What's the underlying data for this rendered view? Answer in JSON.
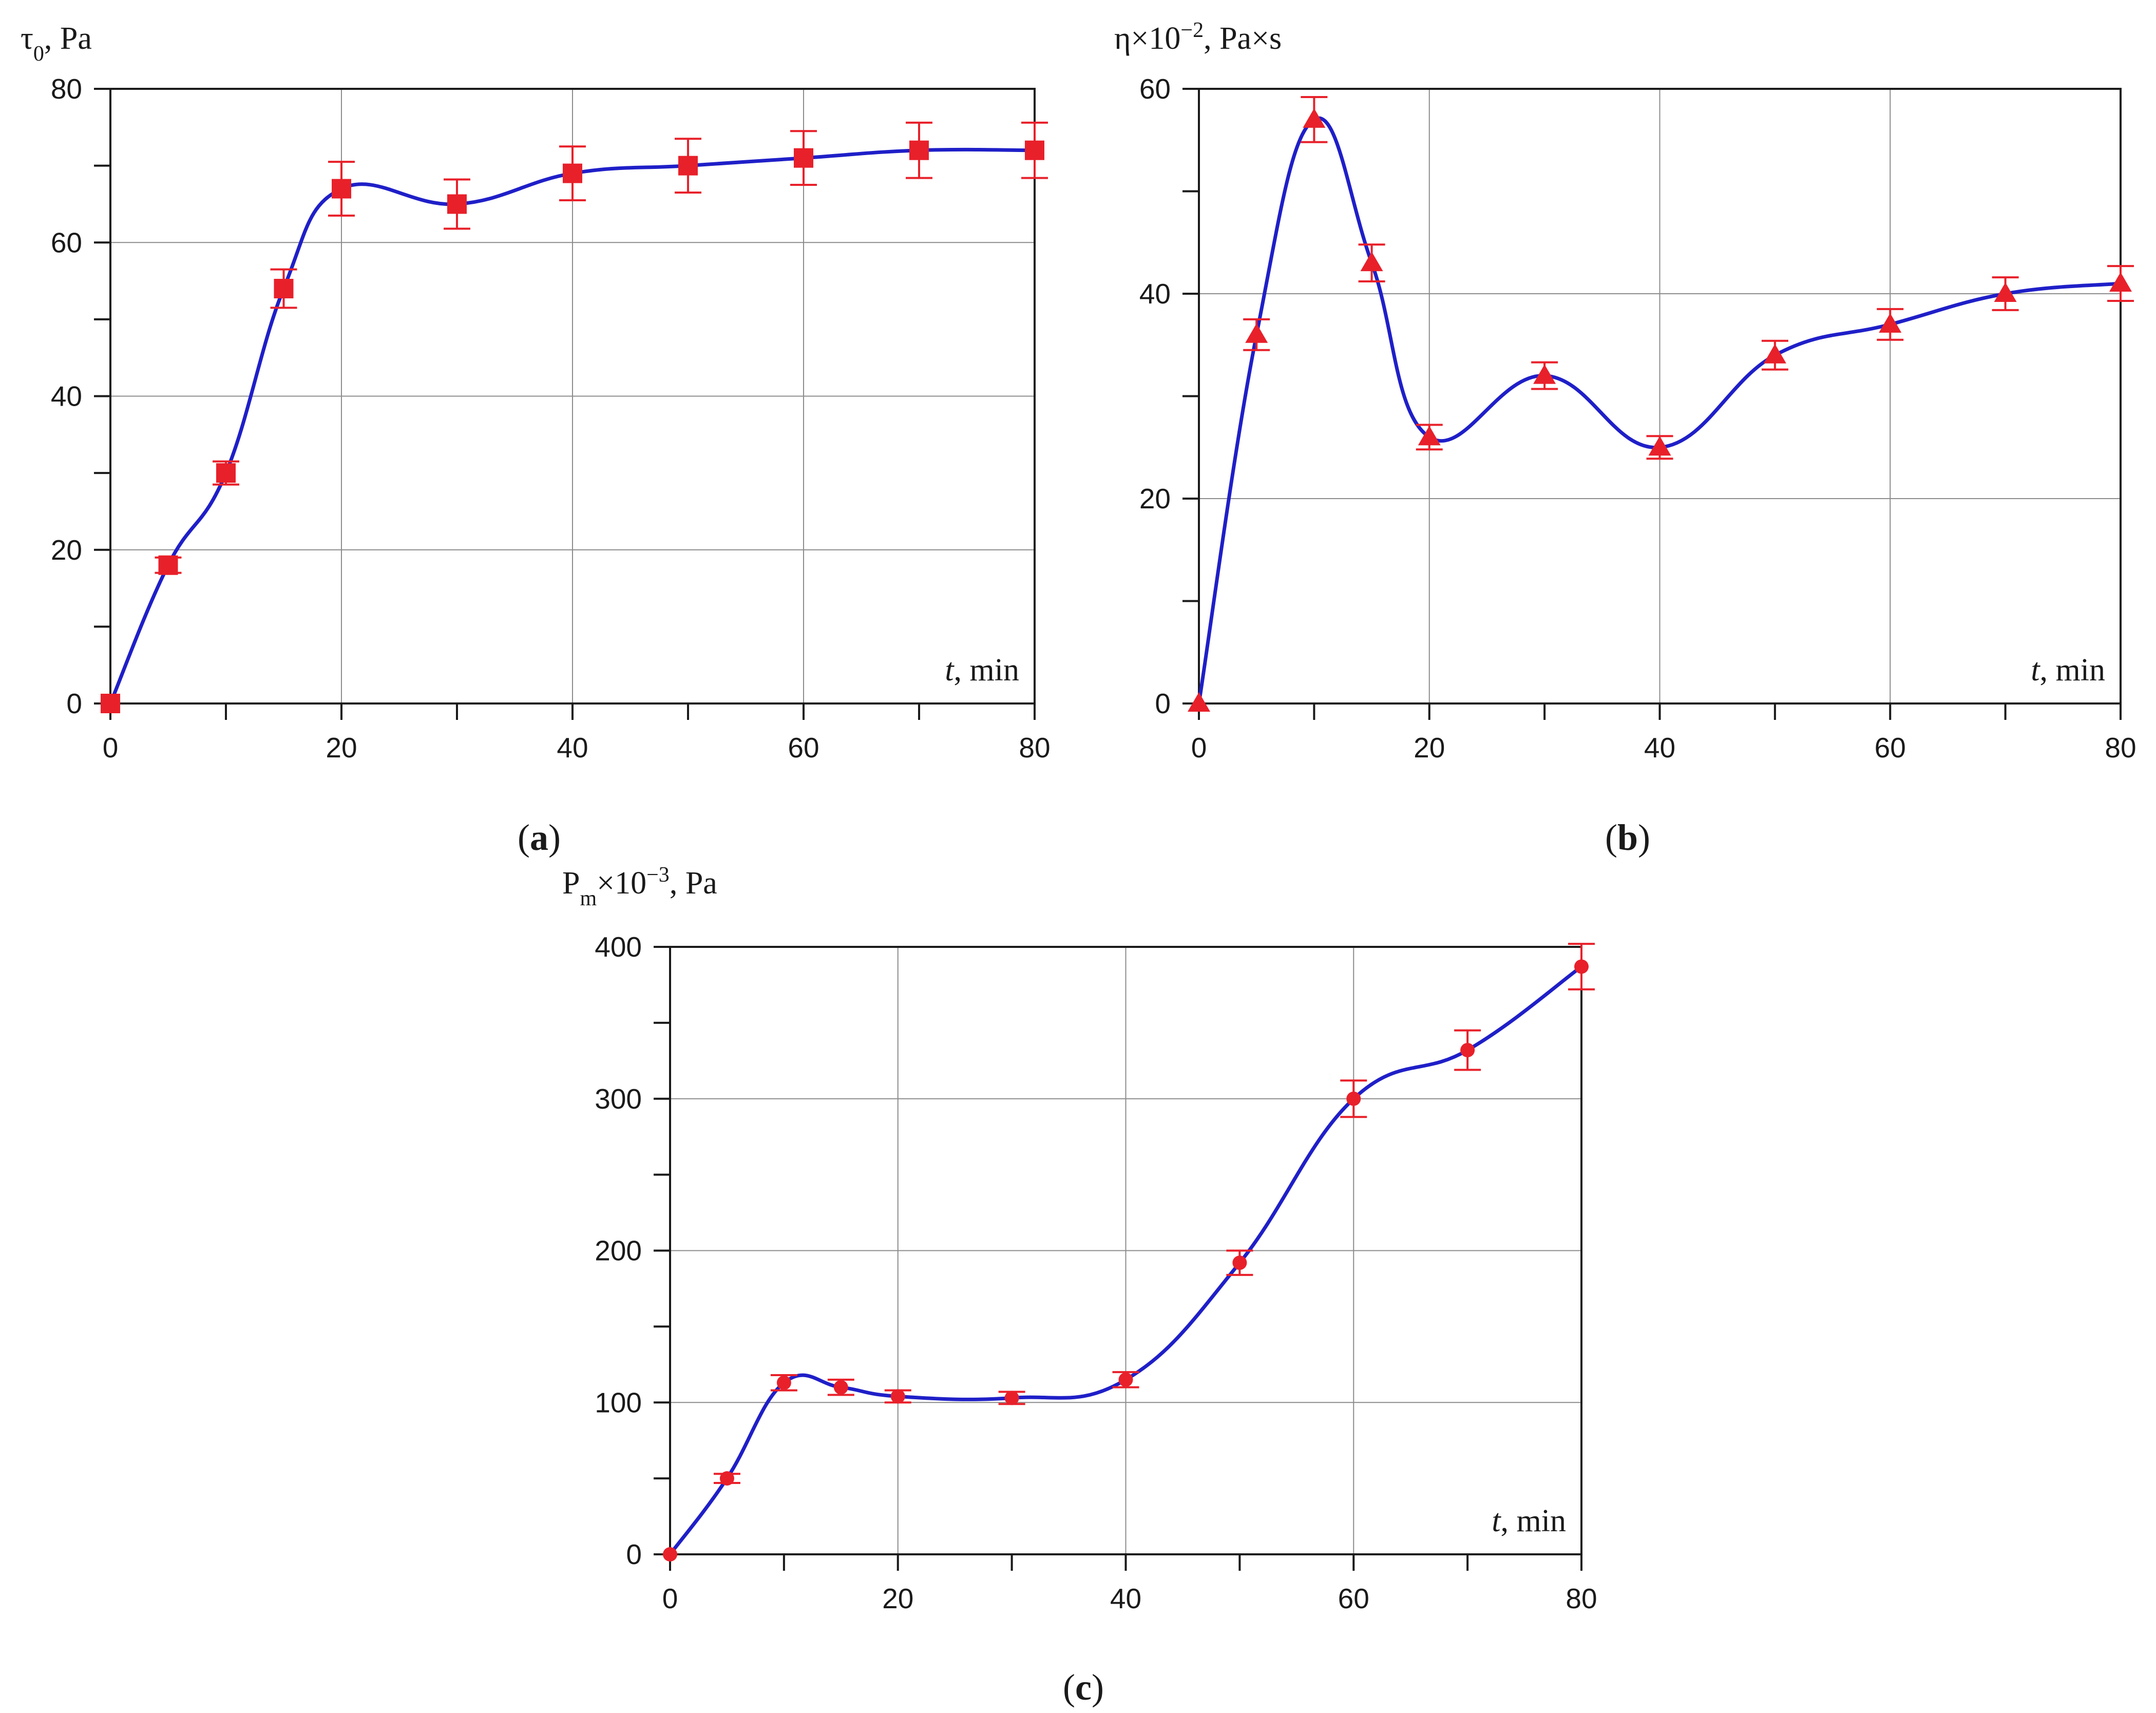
{
  "colors": {
    "curve": "#1f1fc8",
    "marker": "#e8202a",
    "errorbar": "#e8202a",
    "grid": "#8c8c8c",
    "axis": "#1a1a1a"
  },
  "chart_data": [
    {
      "type": "scatter",
      "panel_label": "(a)",
      "ylabel": "τ0, Pa",
      "xlabel": "t, min",
      "xlim": [
        0,
        80
      ],
      "ylim": [
        0,
        80
      ],
      "xticks": [
        0,
        20,
        40,
        60,
        80
      ],
      "yticks": [
        0,
        20,
        40,
        60,
        80
      ],
      "grid": true,
      "marker": "square",
      "x": [
        0,
        5,
        10,
        15,
        20,
        30,
        40,
        50,
        60,
        70,
        80
      ],
      "y": [
        0,
        18,
        30,
        54,
        67,
        65,
        69,
        70,
        71,
        72,
        72
      ],
      "error": [
        0,
        1,
        1.5,
        2.5,
        3.5,
        3.2,
        3.5,
        3.5,
        3.5,
        3.6,
        3.6
      ],
      "fit_curve": true
    },
    {
      "type": "scatter",
      "panel_label": "(b)",
      "ylabel": "η×10−2, Pa×s",
      "xlabel": "t, min",
      "xlim": [
        0,
        80
      ],
      "ylim": [
        0,
        60
      ],
      "xticks": [
        0,
        20,
        40,
        60,
        80
      ],
      "yticks": [
        0,
        20,
        40,
        60
      ],
      "grid": true,
      "marker": "triangle",
      "x": [
        0,
        5,
        10,
        15,
        20,
        30,
        40,
        50,
        60,
        70,
        80
      ],
      "y": [
        0,
        36,
        57,
        43,
        26,
        32,
        25,
        34,
        37,
        40,
        41
      ],
      "error": [
        0,
        1.5,
        2.2,
        1.8,
        1.2,
        1.3,
        1.1,
        1.4,
        1.5,
        1.6,
        1.7
      ],
      "fit_curve": true
    },
    {
      "type": "scatter",
      "panel_label": "(c)",
      "ylabel": "Pm×10−3, Pa",
      "xlabel": "t, min",
      "xlim": [
        0,
        80
      ],
      "ylim": [
        0,
        400
      ],
      "xticks": [
        0,
        20,
        40,
        60,
        80
      ],
      "yticks": [
        0,
        100,
        200,
        300,
        400
      ],
      "grid": true,
      "marker": "circle",
      "x": [
        0,
        5,
        10,
        15,
        20,
        30,
        40,
        50,
        60,
        70,
        80
      ],
      "y": [
        0,
        50,
        113,
        110,
        104,
        103,
        115,
        192,
        300,
        332,
        387
      ],
      "error": [
        0,
        3,
        5,
        5,
        4,
        4,
        5,
        8,
        12,
        13,
        15
      ],
      "fit_curve": true
    }
  ]
}
